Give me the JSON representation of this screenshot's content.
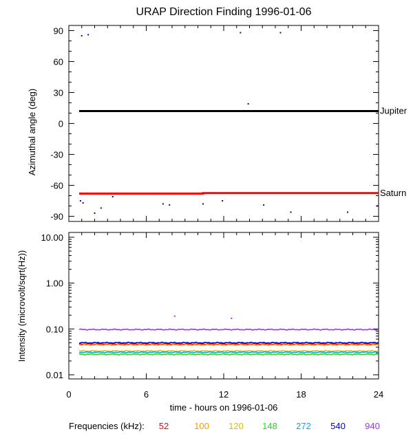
{
  "chart_data": [
    {
      "type": "scatter",
      "title": "URAP Direction Finding  1996-01-06",
      "ylabel": "Azimuthal angle (deg)",
      "xlim": [
        0,
        24
      ],
      "ylim": [
        -95,
        95
      ],
      "y_ticks": [
        "90",
        "60",
        "30",
        "0",
        "-30",
        "-60",
        "-90"
      ],
      "reference_lines": [
        {
          "name": "Jupiter",
          "color": "#000000",
          "segments": [
            [
              0.8,
              12
            ],
            [
              24,
              12
            ]
          ]
        },
        {
          "name": "Saturn",
          "color": "#ff0000",
          "segments": [
            [
              0.8,
              -68
            ],
            [
              10.4,
              -68
            ],
            [
              10.4,
              -67.5
            ],
            [
              24,
              -67.5
            ]
          ]
        }
      ],
      "points_color": "#0000cc",
      "points": [
        [
          1.0,
          85
        ],
        [
          1.5,
          86
        ],
        [
          13.3,
          88
        ],
        [
          16.4,
          88
        ],
        [
          13.9,
          19
        ],
        [
          0.9,
          -75
        ],
        [
          1.1,
          -77
        ],
        [
          3.4,
          -71
        ],
        [
          2.5,
          -82
        ],
        [
          2.0,
          -87
        ],
        [
          7.3,
          -78
        ],
        [
          7.8,
          -79
        ],
        [
          10.4,
          -78
        ],
        [
          11.9,
          -75
        ],
        [
          15.1,
          -79
        ],
        [
          17.2,
          -86
        ],
        [
          21.6,
          -86
        ],
        [
          23.9,
          -80
        ]
      ]
    },
    {
      "type": "line",
      "ylabel": "Intensity (microvolt/sqrt(Hz))",
      "xlabel": "time - hours on 1996-01-06",
      "xlim": [
        0,
        24
      ],
      "x_ticks": [
        "0",
        "6",
        "12",
        "18",
        "24"
      ],
      "y_scale": "log",
      "ylim": [
        0.01,
        10
      ],
      "y_ticks": [
        "10.00",
        "1.00",
        "0.10",
        "0.01"
      ],
      "legend_title": "Frequencies (kHz):",
      "series": [
        {
          "name": "52",
          "color": "#ff0000",
          "level": 0.047
        },
        {
          "name": "100",
          "color": "#ff9900",
          "level": 0.045
        },
        {
          "name": "120",
          "color": "#ddbb00",
          "level": 0.033
        },
        {
          "name": "148",
          "color": "#00ee00",
          "level": 0.028
        },
        {
          "name": "272",
          "color": "#00aaff",
          "level": 0.031
        },
        {
          "name": "540",
          "color": "#0000cc",
          "level": 0.05
        },
        {
          "name": "940",
          "color": "#9933ff",
          "level": 0.097
        }
      ],
      "spikes": [
        {
          "x": 8.2,
          "y": 0.19,
          "color": "#9933ff"
        },
        {
          "x": 12.6,
          "y": 0.17,
          "color": "#9933ff"
        }
      ]
    }
  ]
}
